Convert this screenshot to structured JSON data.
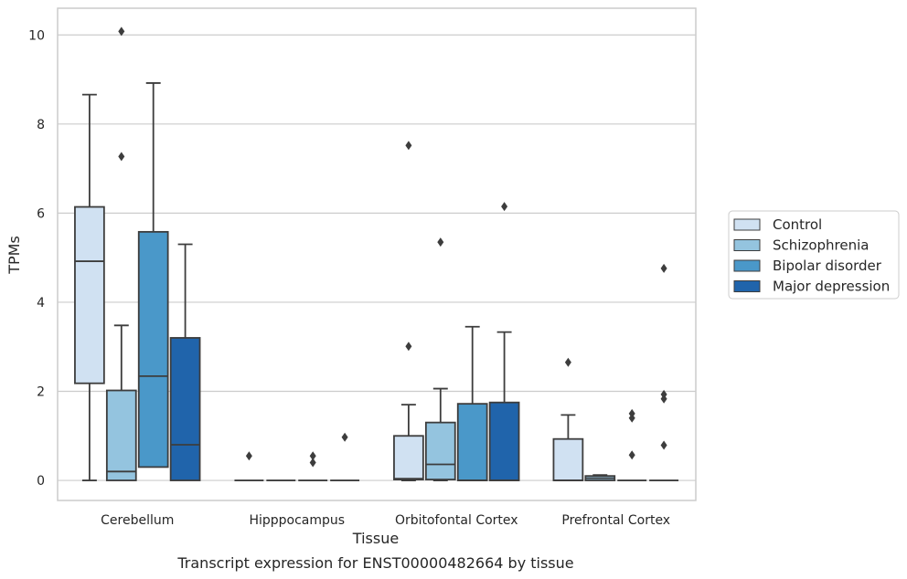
{
  "chart_data": {
    "type": "box",
    "caption": "Transcript expression for ENST00000482664 by tissue",
    "xlabel": "Tissue",
    "ylabel": "TPMs",
    "ylim": [
      -0.45,
      10.6
    ],
    "yticks": [
      0,
      2,
      4,
      6,
      8,
      10
    ],
    "grid": "horizontal",
    "legend_position": "right",
    "categories": [
      "Cerebellum",
      "Hipppocampus",
      "Orbitofontal Cortex",
      "Prefrontal Cortex"
    ],
    "series": [
      {
        "name": "Control",
        "color": "#d0e1f2",
        "boxes": [
          {
            "whisker_low": 0,
            "q1": 2.18,
            "median": 4.92,
            "q3": 6.14,
            "whisker_high": 8.66,
            "outliers": []
          },
          {
            "whisker_low": 0,
            "q1": 0,
            "median": 0,
            "q3": 0,
            "whisker_high": 0,
            "outliers": [
              0.55
            ]
          },
          {
            "whisker_low": 0,
            "q1": 0.02,
            "median": 0.04,
            "q3": 1.0,
            "whisker_high": 1.7,
            "outliers": [
              7.52,
              3.01
            ]
          },
          {
            "whisker_low": 0,
            "q1": 0,
            "median": 0,
            "q3": 0.93,
            "whisker_high": 1.47,
            "outliers": [
              2.65
            ]
          }
        ]
      },
      {
        "name": "Schizophrenia",
        "color": "#94c4df",
        "boxes": [
          {
            "whisker_low": 0,
            "q1": 0,
            "median": 0.2,
            "q3": 2.02,
            "whisker_high": 3.48,
            "outliers": [
              10.08,
              7.27
            ]
          },
          {
            "whisker_low": 0,
            "q1": 0,
            "median": 0,
            "q3": 0,
            "whisker_high": 0,
            "outliers": []
          },
          {
            "whisker_low": 0,
            "q1": 0.02,
            "median": 0.36,
            "q3": 1.3,
            "whisker_high": 2.06,
            "outliers": [
              5.35
            ]
          },
          {
            "whisker_low": 0,
            "q1": 0,
            "median": 0.05,
            "q3": 0.1,
            "whisker_high": 0.12,
            "outliers": []
          }
        ]
      },
      {
        "name": "Bipolar disorder",
        "color": "#4a98c9",
        "boxes": [
          {
            "whisker_low": 0.3,
            "q1": 0.3,
            "median": 2.34,
            "q3": 5.58,
            "whisker_high": 8.92,
            "outliers": []
          },
          {
            "whisker_low": 0,
            "q1": 0,
            "median": 0,
            "q3": 0,
            "whisker_high": 0,
            "outliers": [
              0.55,
              0.4
            ]
          },
          {
            "whisker_low": 0,
            "q1": 0,
            "median": 0,
            "q3": 1.72,
            "whisker_high": 3.45,
            "outliers": []
          },
          {
            "whisker_low": 0,
            "q1": 0,
            "median": 0,
            "q3": 0,
            "whisker_high": 0,
            "outliers": [
              1.5,
              1.4,
              0.57
            ]
          }
        ]
      },
      {
        "name": "Major depression",
        "color": "#2064ab",
        "boxes": [
          {
            "whisker_low": 0,
            "q1": 0,
            "median": 0.8,
            "q3": 3.2,
            "whisker_high": 5.3,
            "outliers": []
          },
          {
            "whisker_low": 0,
            "q1": 0,
            "median": 0,
            "q3": 0,
            "whisker_high": 0,
            "outliers": [
              0.97
            ]
          },
          {
            "whisker_low": 0,
            "q1": 0,
            "median": 0,
            "q3": 1.75,
            "whisker_high": 3.33,
            "outliers": [
              6.15
            ]
          },
          {
            "whisker_low": 0,
            "q1": 0,
            "median": 0,
            "q3": 0,
            "whisker_high": 0,
            "outliers": [
              4.76,
              1.93,
              1.83,
              0.79
            ]
          }
        ]
      }
    ]
  }
}
